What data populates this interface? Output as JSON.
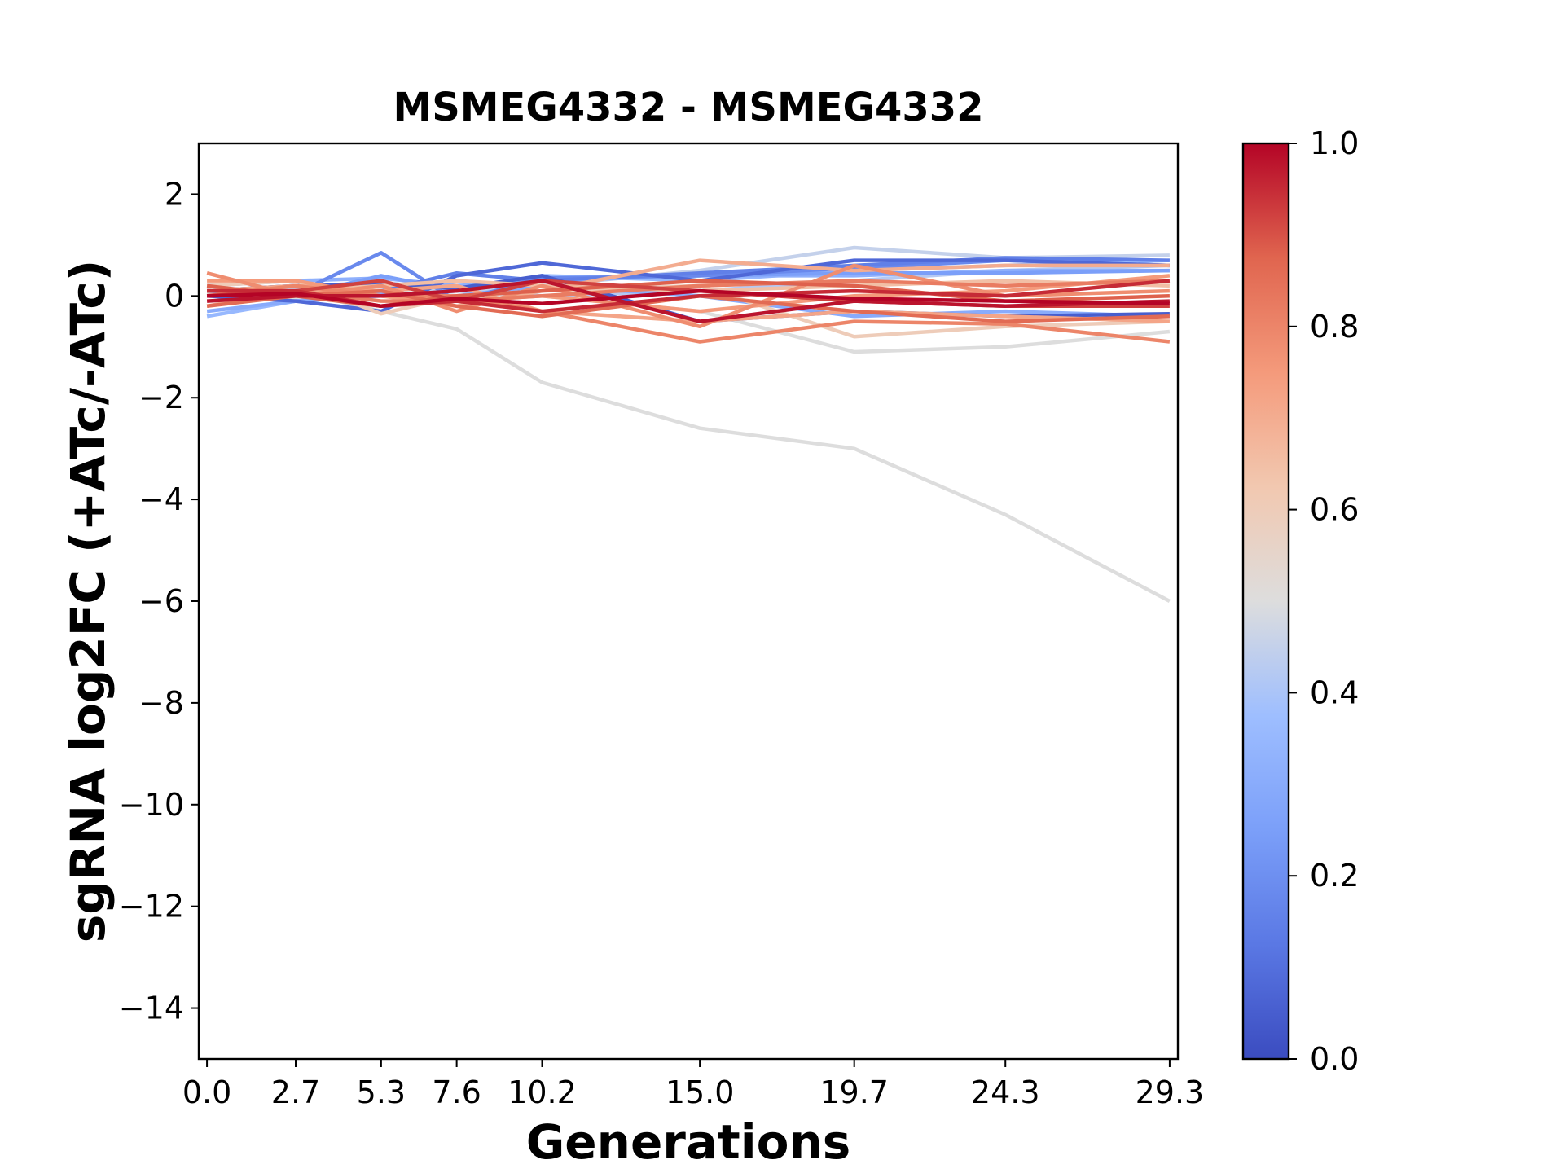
{
  "chart_data": {
    "type": "line",
    "title": "MSMEG4332 - MSMEG4332",
    "xlabel": "Generations",
    "ylabel": "sgRNA log2FC (+ATc/-ATc)",
    "x": [
      0.0,
      2.7,
      5.3,
      7.6,
      10.2,
      15.0,
      19.7,
      24.3,
      29.3
    ],
    "x_tick_labels": [
      "0.0",
      "2.7",
      "5.3",
      "7.6",
      "10.2",
      "15.0",
      "19.7",
      "24.3",
      "29.3"
    ],
    "ylim": [
      -15,
      3
    ],
    "y_ticks": [
      2,
      0,
      -2,
      -4,
      -6,
      -8,
      -10,
      -12,
      -14
    ],
    "y_tick_labels": [
      "2",
      "0",
      "−2",
      "−4",
      "−6",
      "−8",
      "−10",
      "−12",
      "−14"
    ],
    "colorbar": {
      "colormap": "coolwarm",
      "range": [
        0.0,
        1.0
      ],
      "ticks": [
        0.0,
        0.2,
        0.4,
        0.6,
        0.8,
        1.0
      ],
      "tick_labels": [
        "0.0",
        "0.2",
        "0.4",
        "0.6",
        "0.8",
        "1.0"
      ]
    },
    "series": [
      {
        "c": 0.5,
        "values": [
          0.05,
          0.1,
          -0.3,
          -0.65,
          -1.7,
          -2.6,
          -3.0,
          -4.3,
          -6.0
        ]
      },
      {
        "c": 0.5,
        "values": [
          0.0,
          -0.05,
          0.1,
          0.0,
          0.0,
          -0.3,
          -1.1,
          -1.0,
          -0.7
        ]
      },
      {
        "c": 0.45,
        "values": [
          0.1,
          0.15,
          0.2,
          0.1,
          0.2,
          0.5,
          0.95,
          0.75,
          0.8
        ]
      },
      {
        "c": 0.42,
        "values": [
          0.0,
          0.05,
          0.0,
          0.1,
          0.0,
          0.1,
          0.3,
          0.5,
          0.6
        ]
      },
      {
        "c": 0.35,
        "values": [
          -0.4,
          -0.1,
          0.0,
          0.1,
          0.4,
          0.3,
          0.5,
          0.6,
          0.7
        ]
      },
      {
        "c": 0.32,
        "values": [
          0.2,
          0.3,
          0.35,
          0.2,
          0.3,
          0.4,
          0.4,
          0.5,
          0.5
        ]
      },
      {
        "c": 0.3,
        "values": [
          -0.3,
          -0.1,
          0.05,
          0.0,
          0.2,
          0.0,
          -0.4,
          -0.3,
          -0.4
        ]
      },
      {
        "c": 0.25,
        "values": [
          0.1,
          0.0,
          0.4,
          0.1,
          0.35,
          0.4,
          0.45,
          0.45,
          0.5
        ]
      },
      {
        "c": 0.18,
        "values": [
          0.0,
          0.05,
          0.85,
          -0.1,
          0.35,
          0.4,
          0.55,
          0.7,
          0.6
        ]
      },
      {
        "c": 0.15,
        "values": [
          0.1,
          0.2,
          0.1,
          0.45,
          0.3,
          0.45,
          0.6,
          0.75,
          0.7
        ]
      },
      {
        "c": 0.08,
        "values": [
          0.0,
          -0.1,
          -0.3,
          0.4,
          0.65,
          0.3,
          0.7,
          0.7,
          0.6
        ]
      },
      {
        "c": 0.05,
        "values": [
          0.1,
          0.2,
          0.25,
          0.15,
          0.4,
          -0.5,
          -0.3,
          -0.4,
          -0.35
        ]
      },
      {
        "c": 0.6,
        "values": [
          0.2,
          0.3,
          -0.35,
          0.0,
          0.1,
          0.2,
          -0.8,
          -0.6,
          -0.5
        ]
      },
      {
        "c": 0.65,
        "values": [
          0.0,
          0.1,
          0.2,
          0.3,
          0.2,
          0.1,
          0.2,
          0.3,
          0.2
        ]
      },
      {
        "c": 0.7,
        "values": [
          -0.2,
          0.1,
          0.0,
          -0.2,
          0.1,
          0.7,
          0.5,
          0.6,
          0.6
        ]
      },
      {
        "c": 0.72,
        "values": [
          0.1,
          0.2,
          0.1,
          0.2,
          -0.3,
          -0.5,
          -0.3,
          -0.4,
          -0.5
        ]
      },
      {
        "c": 0.75,
        "values": [
          0.3,
          0.3,
          0.0,
          -0.1,
          0.0,
          -0.3,
          0.0,
          0.1,
          0.4
        ]
      },
      {
        "c": 0.78,
        "values": [
          0.45,
          0.0,
          0.2,
          -0.3,
          0.2,
          -0.6,
          0.6,
          0.0,
          0.1
        ]
      },
      {
        "c": 0.8,
        "values": [
          0.0,
          0.2,
          0.0,
          0.0,
          -0.3,
          -0.9,
          -0.5,
          -0.55,
          -0.9
        ]
      },
      {
        "c": 0.82,
        "values": [
          0.1,
          0.1,
          -0.1,
          -0.1,
          0.0,
          0.2,
          0.3,
          0.2,
          0.3
        ]
      },
      {
        "c": 0.86,
        "values": [
          -0.2,
          0.0,
          0.1,
          -0.2,
          -0.4,
          0.0,
          -0.3,
          -0.5,
          -0.4
        ]
      },
      {
        "c": 0.88,
        "values": [
          0.2,
          0.0,
          -0.2,
          0.0,
          0.1,
          0.3,
          0.2,
          -0.1,
          0.0
        ]
      },
      {
        "c": 0.92,
        "values": [
          0.0,
          0.1,
          0.3,
          -0.1,
          0.3,
          0.1,
          -0.1,
          -0.2,
          -0.2
        ]
      },
      {
        "c": 0.95,
        "values": [
          0.1,
          0.1,
          -0.2,
          -0.1,
          -0.3,
          0.0,
          0.1,
          0.0,
          0.3
        ]
      },
      {
        "c": 0.98,
        "values": [
          -0.1,
          0.0,
          0.0,
          0.1,
          0.3,
          -0.5,
          -0.1,
          -0.2,
          -0.1
        ]
      },
      {
        "c": 1.0,
        "values": [
          0.0,
          0.05,
          -0.2,
          -0.05,
          -0.15,
          0.1,
          -0.05,
          -0.1,
          -0.15
        ]
      }
    ]
  }
}
